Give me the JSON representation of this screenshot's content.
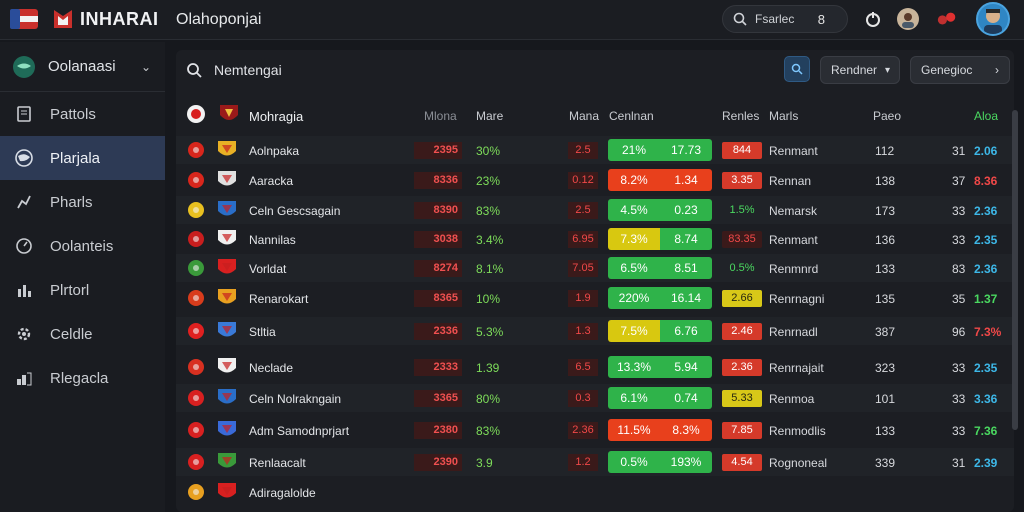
{
  "header": {
    "brand": "INHARAI",
    "title": "Olahoponjai",
    "search_label": "Fsarlec",
    "search_count": "8"
  },
  "sidebar": {
    "head_label": "Oolanaasi",
    "items": [
      {
        "label": "Pattols",
        "icon": "file-icon"
      },
      {
        "label": "Plarjala",
        "icon": "globe-icon",
        "active": true
      },
      {
        "label": "Pharls",
        "icon": "chart-icon"
      },
      {
        "label": "Oolanteis",
        "icon": "gauge-icon"
      },
      {
        "label": "Plrtorl",
        "icon": "bar-chart-icon"
      },
      {
        "label": "Celdle",
        "icon": "gear-icon"
      },
      {
        "label": "Rlegacla",
        "icon": "layers-icon"
      }
    ]
  },
  "toolbar": {
    "search_text": "Nemtengai",
    "btn1_label": "Rendner",
    "btn2_label": "Genegioc"
  },
  "table": {
    "headers": {
      "team": "Mohragia",
      "h1": "Mlona",
      "h2": "Mare",
      "h3": "Mana",
      "h4": "Cenlnan",
      "h5": "Renles",
      "h6": "Marls",
      "h7": "Paeo",
      "h8": "Aloa"
    },
    "rows": [
      {
        "name": "Aolnpaka",
        "v1": "2395",
        "v2": "30%",
        "v3": "2.5",
        "bar_a": "21%",
        "bar_b": "17.73",
        "bar_color": "green",
        "v4": "844",
        "v4_color": "#d53a2a",
        "stat": "Renmant",
        "n1": "112",
        "n2": "31",
        "n3": "2.06",
        "n3_color": "#3db8e8",
        "f1": "#d8261c",
        "f2": "#e8b025"
      },
      {
        "name": "Aaracka",
        "v1": "8336",
        "v2": "23%",
        "v3": "0.12",
        "bar_a": "8.2%",
        "bar_b": "1.34",
        "bar_color": "red",
        "v4": "3.35",
        "v4_color": "#d53a2a",
        "stat": "Rennan",
        "n1": "138",
        "n2": "37",
        "n3": "8.36",
        "n3_color": "#f04848",
        "f1": "#d8261c",
        "f2": "#e0e0e0"
      },
      {
        "name": "Celn Gescsagain",
        "v1": "8390",
        "v2": "83%",
        "v3": "2.5",
        "bar_a": "4.5%",
        "bar_b": "0.23",
        "bar_color": "green",
        "v4": "1.5%",
        "v4_color": "transparent",
        "stat": "Nemarsk",
        "n1": "173",
        "n2": "33",
        "n3": "2.36",
        "n3_color": "#3db8e8",
        "f1": "#e8c020",
        "f2": "#2a6ec8"
      },
      {
        "name": "Nannilas",
        "v1": "3038",
        "v2": "3.4%",
        "v3": "6.95",
        "bar_a": "7.3%",
        "bar_b": "8.74",
        "bar_color": "yellow",
        "v4": "83.35",
        "v4_color": "#3a1a1a",
        "stat": "Renmant",
        "n1": "136",
        "n2": "33",
        "n3": "2.35",
        "n3_color": "#3db8e8",
        "f1": "#c81e1e",
        "f2": "#f0f0f0"
      },
      {
        "name": "Vorldat",
        "v1": "8274",
        "v2": "8.1%",
        "v3": "7.05",
        "bar_a": "6.5%",
        "bar_b": "8.51",
        "bar_color": "green",
        "v4": "0.5%",
        "v4_color": "transparent",
        "stat": "Renmnrd",
        "n1": "133",
        "n2": "83",
        "n3": "2.36",
        "n3_color": "#3db8e8",
        "f1": "#3a9a3a",
        "f2": "#d82020"
      },
      {
        "name": "Renarokart",
        "v1": "8365",
        "v2": "10%",
        "v3": "1.9",
        "bar_a": "220%",
        "bar_b": "16.14",
        "bar_color": "green",
        "v4": "2.66",
        "v4_color": "#d8c818",
        "stat": "Renrnagni",
        "n1": "135",
        "n2": "35",
        "n3": "1.37",
        "n3_color": "#4ad860",
        "f1": "#d83c1c",
        "f2": "#e8a020"
      },
      {
        "name": "Stltia",
        "v1": "2336",
        "v2": "5.3%",
        "v3": "1.3",
        "bar_a": "7.5%",
        "bar_b": "6.76",
        "bar_color": "yellow",
        "v4": "2.46",
        "v4_color": "#d53a2a",
        "stat": "Renrnadl",
        "n1": "387",
        "n2": "96",
        "n3": "7.3%",
        "n3_color": "#f04848",
        "f1": "#e02020",
        "f2": "#3a7ad8"
      },
      {
        "name": "Neclade",
        "v1": "2333",
        "v2": "1.39",
        "v3": "6.5",
        "bar_a": "13.3%",
        "bar_b": "5.94",
        "bar_color": "green",
        "v4": "2.36",
        "v4_color": "#d53a2a",
        "stat": "Renrnajait",
        "n1": "323",
        "n2": "33",
        "n3": "2.35",
        "n3_color": "#3db8e8",
        "f1": "#d83020",
        "f2": "#f0f0f0"
      },
      {
        "name": "Celn Nolrakngain",
        "v1": "3365",
        "v2": "80%",
        "v3": "0.3",
        "bar_a": "6.1%",
        "bar_b": "0.74",
        "bar_color": "green",
        "v4": "5.33",
        "v4_color": "#d8c818",
        "stat": "Renmoa",
        "n1": "101",
        "n2": "33",
        "n3": "3.36",
        "n3_color": "#3db8e8",
        "f1": "#d82020",
        "f2": "#2a6ec8"
      },
      {
        "name": "Adm Samodnprjart",
        "v1": "2380",
        "v2": "83%",
        "v3": "2.36",
        "bar_a": "11.5%",
        "bar_b": "8.3%",
        "bar_color": "red",
        "v4": "7.85",
        "v4_color": "#d53a2a",
        "stat": "Renmodlis",
        "n1": "133",
        "n2": "33",
        "n3": "7.36",
        "n3_color": "#4ad860",
        "f1": "#d82020",
        "f2": "#3a6ad8"
      },
      {
        "name": "Renlaacalt",
        "v1": "2390",
        "v2": "3.9",
        "v3": "1.2",
        "bar_a": "0.5%",
        "bar_b": "193%",
        "bar_color": "green",
        "v4": "4.54",
        "v4_color": "#d53a2a",
        "stat": "Rognoneal",
        "n1": "339",
        "n2": "31",
        "n3": "2.39",
        "n3_color": "#3db8e8",
        "f1": "#d82020",
        "f2": "#3a9a3a"
      },
      {
        "name": "Adiragalolde",
        "v1": "",
        "v2": "",
        "v3": "",
        "bar_a": "",
        "bar_b": "",
        "bar_color": "none",
        "v4": "",
        "v4_color": "transparent",
        "stat": "",
        "n1": "",
        "n2": "",
        "n3": "",
        "n3_color": "#3db8e8",
        "f1": "#e8a020",
        "f2": "#d82020"
      }
    ]
  }
}
